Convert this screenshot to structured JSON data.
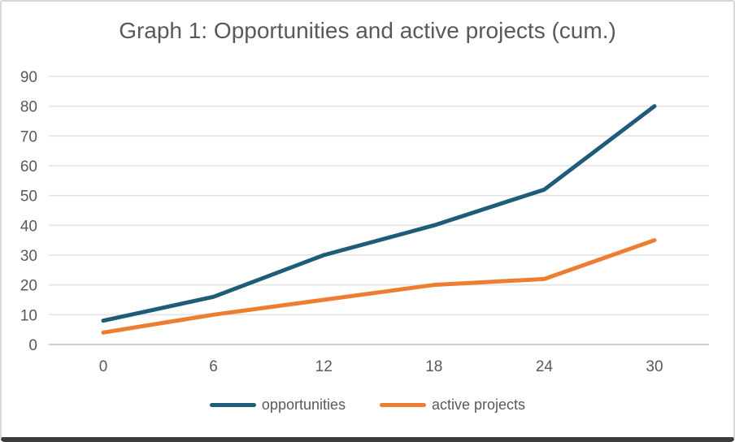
{
  "title_bar": {
    "title": "Graph 1: Opportunities and active projects (cum.)"
  },
  "colors": {
    "title_text": "#595959",
    "axis_text": "#595959",
    "gridline": "#e4e4e4",
    "axis_line": "#cfcfcf",
    "card_border": "#d8d8d8",
    "card_bottom_edge": "#3c3c3c",
    "background": "#ffffff",
    "series_opportunities": "#1e5c7a",
    "series_active_projects": "#ed7d31"
  },
  "chart_data": {
    "type": "line",
    "title": "Graph 1: Opportunities and active projects (cum.)",
    "x": [
      0,
      6,
      12,
      18,
      24,
      30
    ],
    "series": [
      {
        "name": "opportunities",
        "color": "#1e5c7a",
        "values": [
          8,
          16,
          30,
          40,
          52,
          80
        ]
      },
      {
        "name": "active projects",
        "color": "#ed7d31",
        "values": [
          4,
          10,
          15,
          20,
          22,
          35
        ]
      }
    ],
    "xlabel": "",
    "ylabel": "",
    "ylim": [
      0,
      90
    ],
    "ytick_step": 10,
    "yticks": [
      0,
      10,
      20,
      30,
      40,
      50,
      60,
      70,
      80,
      90
    ],
    "grid": true,
    "legend_position": "bottom"
  }
}
